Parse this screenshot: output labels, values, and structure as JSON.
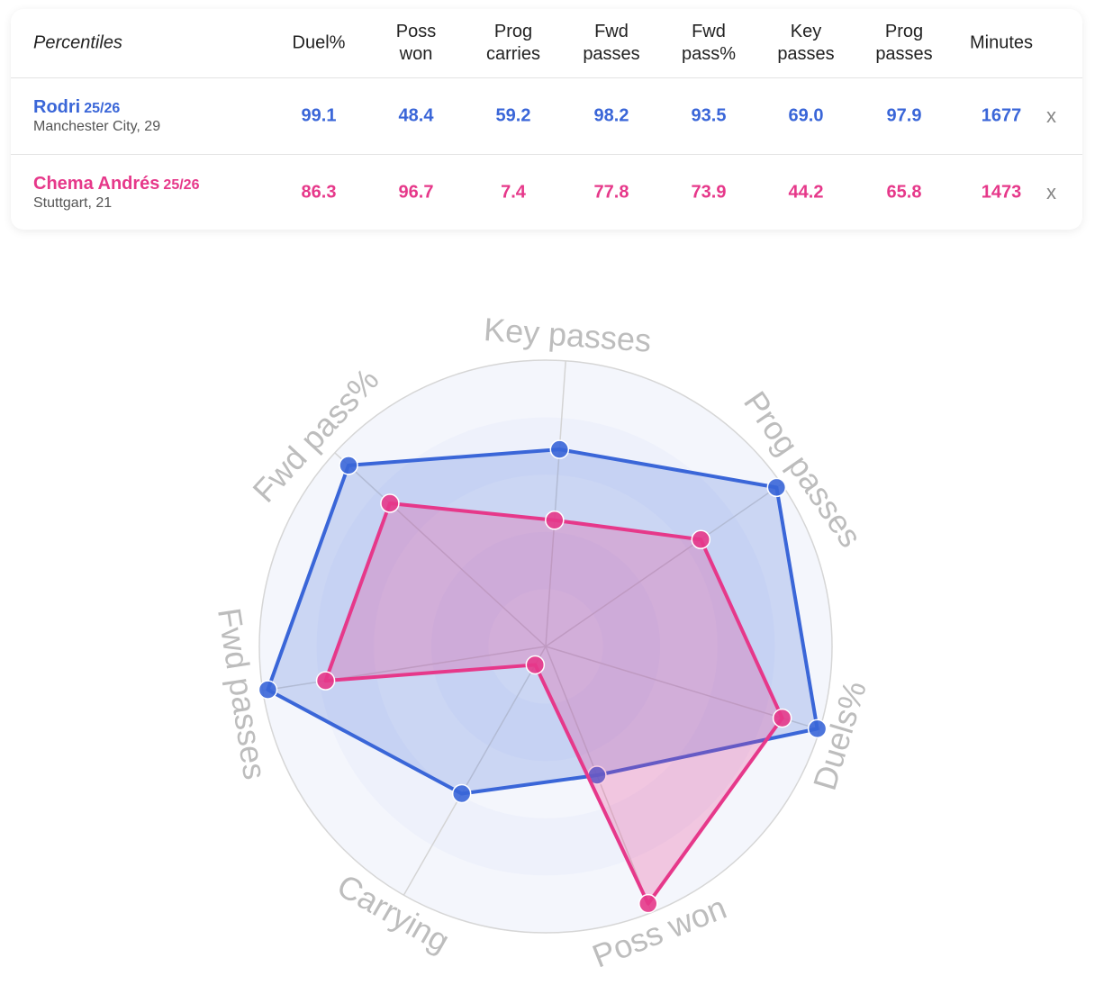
{
  "table": {
    "title": "Percentiles",
    "columns": [
      [
        "Duel%"
      ],
      [
        "Poss",
        "won"
      ],
      [
        "Prog",
        "carries"
      ],
      [
        "Fwd",
        "passes"
      ],
      [
        "Fwd",
        "pass%"
      ],
      [
        "Key",
        "passes"
      ],
      [
        "Prog",
        "passes"
      ],
      [
        "Minutes"
      ]
    ],
    "players": [
      {
        "name": "Rodri",
        "season": "25/26",
        "subtitle": "Manchester City, 29",
        "values": [
          "99.1",
          "48.4",
          "59.2",
          "98.2",
          "93.5",
          "69.0",
          "97.9",
          "1677"
        ],
        "remove": "x",
        "color": "#3a66d8"
      },
      {
        "name": "Chema Andrés",
        "season": "25/26",
        "subtitle": "Stuttgart, 21",
        "values": [
          "86.3",
          "96.7",
          "7.4",
          "77.8",
          "73.9",
          "44.2",
          "65.8",
          "1473"
        ],
        "remove": "x",
        "color": "#e6388a"
      }
    ]
  },
  "chart_data": {
    "type": "radar",
    "axes": [
      "Key passes",
      "Prog passes",
      "Duels%",
      "Poss won",
      "Carrying",
      "Fwd passes",
      "Fwd pass%"
    ],
    "range": [
      0,
      100
    ],
    "series": [
      {
        "name": "Rodri",
        "color": "#3a66d8",
        "values": [
          69.0,
          97.9,
          99.1,
          48.4,
          59.2,
          98.2,
          93.5
        ]
      },
      {
        "name": "Chema Andrés",
        "color": "#e6388a",
        "values": [
          44.2,
          65.8,
          86.3,
          96.7,
          7.4,
          77.8,
          73.9
        ]
      }
    ]
  }
}
